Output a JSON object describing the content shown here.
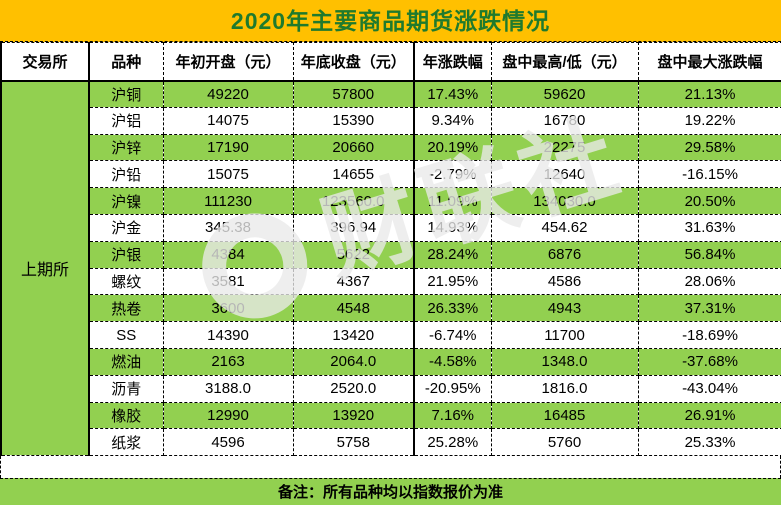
{
  "colors": {
    "title_background": "#FFC000",
    "title_text": "#1F7A2D",
    "row_green": "#92D050",
    "row_white": "#FFFFFF",
    "cell_text": "#000000"
  },
  "watermark": {
    "text": "财联社"
  },
  "chart_data": {
    "type": "table",
    "title": "2020年主要商品期货涨跌情况",
    "headers": [
      "交易所",
      "品种",
      "年初开盘（元）",
      "年底收盘（元）",
      "年涨跌幅",
      "盘中最高/低（元）",
      "盘中最大涨跌幅"
    ],
    "exchange": "上期所",
    "rows": [
      {
        "variety": "沪铜",
        "open": "49220",
        "close": "57800",
        "year_change": "17.43%",
        "intraday_high_low": "59620",
        "max_change": "21.13%"
      },
      {
        "variety": "沪铝",
        "open": "14075",
        "close": "15390",
        "year_change": "9.34%",
        "intraday_high_low": "16780",
        "max_change": "19.22%"
      },
      {
        "variety": "沪锌",
        "open": "17190",
        "close": "20660",
        "year_change": "20.19%",
        "intraday_high_low": "22275",
        "max_change": "29.58%"
      },
      {
        "variety": "沪铅",
        "open": "15075",
        "close": "14655",
        "year_change": "-2.79%",
        "intraday_high_low": "12640",
        "max_change": "-16.15%"
      },
      {
        "variety": "沪镍",
        "open": "111230",
        "close": "123560.0",
        "year_change": "11.09%",
        "intraday_high_low": "134030.0",
        "max_change": "20.50%"
      },
      {
        "variety": "沪金",
        "open": "345.38",
        "close": "396.94",
        "year_change": "14.93%",
        "intraday_high_low": "454.62",
        "max_change": "31.63%"
      },
      {
        "variety": "沪银",
        "open": "4384",
        "close": "5622",
        "year_change": "28.24%",
        "intraday_high_low": "6876",
        "max_change": "56.84%"
      },
      {
        "variety": "螺纹",
        "open": "3581",
        "close": "4367",
        "year_change": "21.95%",
        "intraday_high_low": "4586",
        "max_change": "28.06%"
      },
      {
        "variety": "热卷",
        "open": "3600",
        "close": "4548",
        "year_change": "26.33%",
        "intraday_high_low": "4943",
        "max_change": "37.31%"
      },
      {
        "variety": "SS",
        "open": "14390",
        "close": "13420",
        "year_change": "-6.74%",
        "intraday_high_low": "11700",
        "max_change": "-18.69%"
      },
      {
        "variety": "燃油",
        "open": "2163",
        "close": "2064.0",
        "year_change": "-4.58%",
        "intraday_high_low": "1348.0",
        "max_change": "-37.68%"
      },
      {
        "variety": "沥青",
        "open": "3188.0",
        "close": "2520.0",
        "year_change": "-20.95%",
        "intraday_high_low": "1816.0",
        "max_change": "-43.04%"
      },
      {
        "variety": "橡胶",
        "open": "12990",
        "close": "13920",
        "year_change": "7.16%",
        "intraday_high_low": "16485",
        "max_change": "26.91%"
      },
      {
        "variety": "纸浆",
        "open": "4596",
        "close": "5758",
        "year_change": "25.28%",
        "intraday_high_low": "5760",
        "max_change": "25.33%"
      }
    ],
    "note": "备注：所有品种均以指数报价为准"
  }
}
